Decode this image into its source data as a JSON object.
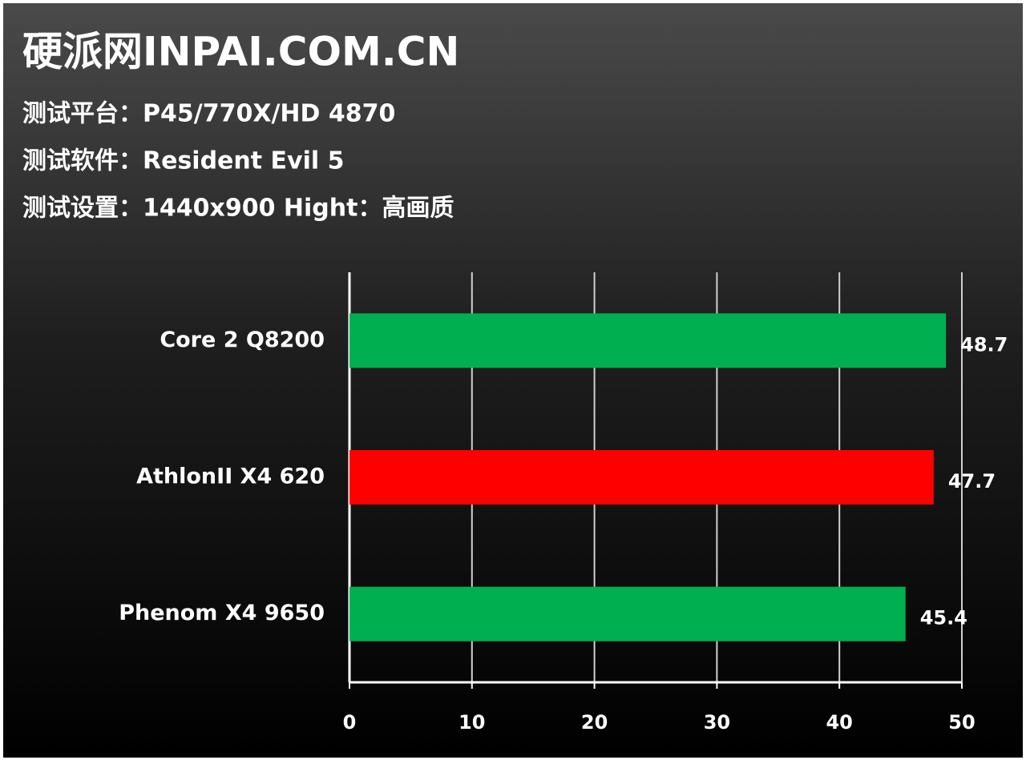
{
  "chart_data": {
    "type": "bar",
    "orientation": "horizontal",
    "title": "硬派网INPAI.COM.CN",
    "subtitle": [
      "测试平台：P45/770X/HD 4870",
      "测试软件：Resident Evil 5",
      "测试设置：1440x900 Hight：高画质"
    ],
    "categories": [
      "Core 2 Q8200",
      "AthlonII X4 620",
      "Phenom X4 9650"
    ],
    "values": [
      48.7,
      47.7,
      45.4
    ],
    "colors": [
      "#00b050",
      "#ff0000",
      "#00b050"
    ],
    "xlim": [
      0,
      50
    ],
    "xticks": [
      0,
      10,
      20,
      30,
      40,
      50
    ],
    "grid": true
  }
}
